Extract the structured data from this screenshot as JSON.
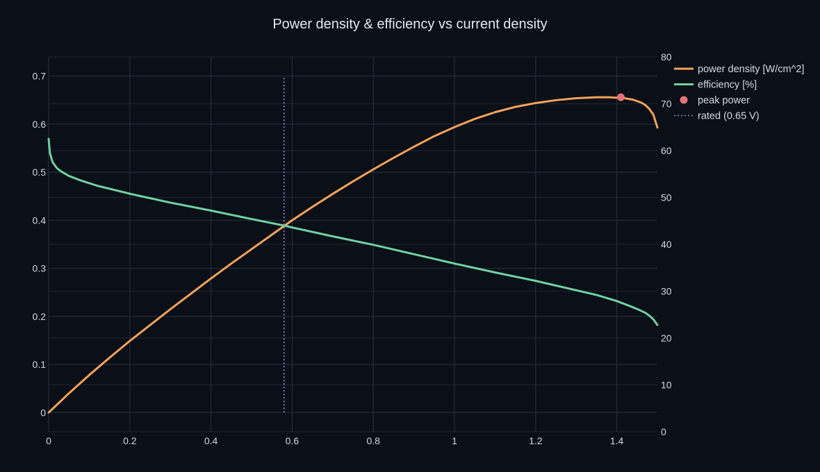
{
  "chart_data": {
    "type": "line",
    "title": "Power density & efficiency vs current density",
    "xlabel": "",
    "ylabel": "",
    "y2label": "",
    "xlim": [
      0,
      1.5
    ],
    "ylim": [
      -0.04,
      0.74
    ],
    "y2lim": [
      0,
      80
    ],
    "xticks": [
      0,
      0.2,
      0.4,
      0.6,
      0.8,
      1.0,
      1.2,
      1.4
    ],
    "xtick_labels": [
      "0",
      "0.2",
      "0.4",
      "0.6",
      "0.8",
      "1",
      "1.2",
      "1.4"
    ],
    "yticks": [
      0,
      0.1,
      0.2,
      0.3,
      0.4,
      0.5,
      0.6,
      0.7
    ],
    "ytick_labels": [
      "0",
      "0.1",
      "0.2",
      "0.3",
      "0.4",
      "0.5",
      "0.6",
      "0.7"
    ],
    "y2ticks": [
      0,
      10,
      20,
      30,
      40,
      50,
      60,
      70,
      80
    ],
    "y2tick_labels": [
      "0",
      "10",
      "20",
      "30",
      "40",
      "50",
      "60",
      "70",
      "80"
    ],
    "grid": true,
    "legend_position": "top-right",
    "series": [
      {
        "name": "power density [W/cm^2]",
        "axis": "left",
        "style": "line",
        "color": "#f4a35a",
        "x": [
          0,
          0.02,
          0.05,
          0.1,
          0.15,
          0.2,
          0.25,
          0.3,
          0.35,
          0.4,
          0.45,
          0.5,
          0.55,
          0.6,
          0.65,
          0.7,
          0.75,
          0.8,
          0.85,
          0.9,
          0.95,
          1.0,
          1.05,
          1.1,
          1.15,
          1.2,
          1.25,
          1.3,
          1.35,
          1.38,
          1.4,
          1.42,
          1.44,
          1.46,
          1.47,
          1.48,
          1.49,
          1.5
        ],
        "y": [
          0,
          0.016,
          0.04,
          0.078,
          0.114,
          0.149,
          0.182,
          0.215,
          0.247,
          0.279,
          0.31,
          0.34,
          0.37,
          0.4,
          0.428,
          0.455,
          0.481,
          0.506,
          0.53,
          0.553,
          0.575,
          0.594,
          0.611,
          0.625,
          0.636,
          0.644,
          0.65,
          0.654,
          0.656,
          0.656,
          0.655,
          0.654,
          0.651,
          0.645,
          0.64,
          0.632,
          0.62,
          0.593
        ]
      },
      {
        "name": "efficiency [%]",
        "axis": "right",
        "style": "line",
        "color": "#6fd3a0",
        "x": [
          0,
          0.003,
          0.01,
          0.02,
          0.03,
          0.05,
          0.08,
          0.12,
          0.2,
          0.3,
          0.4,
          0.5,
          0.58,
          0.6,
          0.7,
          0.8,
          0.9,
          1.0,
          1.1,
          1.2,
          1.3,
          1.35,
          1.4,
          1.43,
          1.45,
          1.47,
          1.48,
          1.49,
          1.5
        ],
        "y": [
          62.5,
          59.5,
          57.5,
          56.3,
          55.6,
          54.6,
          53.6,
          52.5,
          50.8,
          48.9,
          47.2,
          45.4,
          44.0,
          43.6,
          41.7,
          39.9,
          37.9,
          35.9,
          34.0,
          32.2,
          30.2,
          29.2,
          27.9,
          26.9,
          26.2,
          25.4,
          24.8,
          24.0,
          22.8
        ]
      },
      {
        "name": "peak power",
        "axis": "left",
        "style": "marker",
        "color": "#e8727a",
        "x": [
          1.41
        ],
        "y": [
          0.656
        ]
      },
      {
        "name": "rated (0.65 V)",
        "axis": "left",
        "style": "dotted-line",
        "color": "#8f94ee",
        "x": [
          0.58,
          0.58
        ],
        "y": [
          0,
          0.7
        ]
      }
    ]
  }
}
